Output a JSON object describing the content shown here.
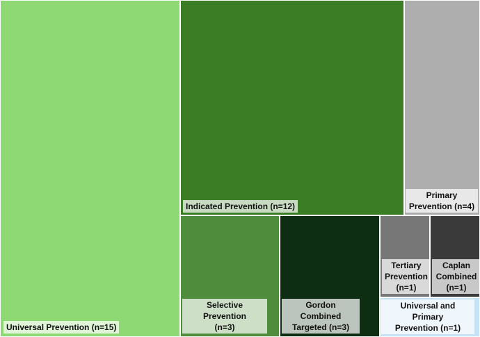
{
  "chart_data": {
    "type": "treemap",
    "title": "",
    "items": [
      {
        "name": "universal",
        "label": "Universal Prevention (n=15)",
        "value": 15,
        "color": "#8fd975"
      },
      {
        "name": "indicated",
        "label": "Indicated Prevention (n=12)",
        "value": 12,
        "color": "#3b7d24"
      },
      {
        "name": "primary",
        "label": "Primary Prevention (n=4)",
        "value": 4,
        "color": "#aeaeae"
      },
      {
        "name": "selective",
        "label": "Selective Prevention (n=3)",
        "value": 3,
        "color": "#4f8c3c"
      },
      {
        "name": "gordon-combined-targeted",
        "label": "Gordon Combined Targeted (n=3)",
        "value": 3,
        "color": "#0d2e12"
      },
      {
        "name": "tertiary",
        "label": "Tertiary Prevention (n=1)",
        "value": 1,
        "color": "#777777"
      },
      {
        "name": "caplan-combined",
        "label": "Caplan Combined (n=1)",
        "value": 1,
        "color": "#3a3a3a"
      },
      {
        "name": "universal-and-primary",
        "label": "Universal and Primary Prevention (n=1)",
        "value": 1,
        "color": "#c5e3f6"
      }
    ]
  }
}
